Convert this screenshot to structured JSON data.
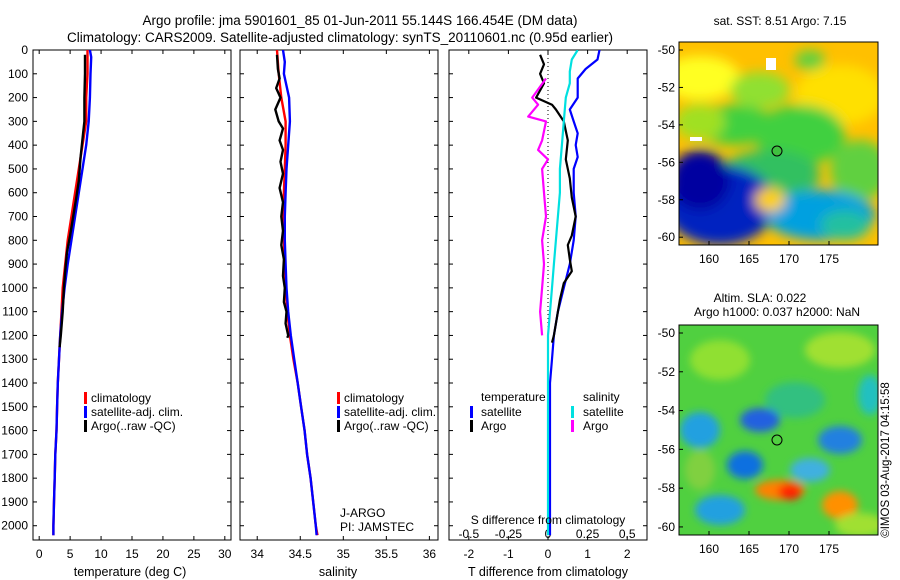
{
  "header": {
    "line1": "Argo profile: jma 5901601_85 01-Jun-2011 55.144S 166.454E (DM data)",
    "line2": "Climatology: CARS2009. Satellite-adjusted climatology: synTS_20110601.nc (0.95d earlier)"
  },
  "colors": {
    "climatology": "#ff0000",
    "satellite": "#0000ff",
    "argo": "#000000",
    "sat_S": "#00e0e0",
    "argo_S": "#ff00ff"
  },
  "chart_data": [
    {
      "type": "line",
      "panel": "temperature",
      "xlabel": "temperature (deg C)",
      "ylabel": "",
      "xlim": [
        -1,
        31
      ],
      "ylim": [
        2060,
        0
      ],
      "xticks": [
        0,
        5,
        10,
        15,
        20,
        25,
        30
      ],
      "yticks": [
        0,
        100,
        200,
        300,
        400,
        500,
        600,
        700,
        800,
        900,
        1000,
        1100,
        1200,
        1300,
        1400,
        1500,
        1600,
        1700,
        1800,
        1900,
        2000
      ],
      "legend": [
        "climatology",
        "satellite-adj. clim.",
        "Argo(..raw -QC)"
      ],
      "legend_position": "lower-center",
      "series": [
        {
          "name": "climatology",
          "color": "#ff0000",
          "points": [
            [
              7.8,
              0
            ],
            [
              7.8,
              100
            ],
            [
              7.6,
              200
            ],
            [
              7.6,
              300
            ],
            [
              7.0,
              400
            ],
            [
              6.4,
              500
            ],
            [
              5.8,
              600
            ],
            [
              5.2,
              700
            ],
            [
              4.6,
              800
            ],
            [
              4.2,
              900
            ],
            [
              3.8,
              1000
            ],
            [
              3.6,
              1100
            ],
            [
              3.4,
              1200
            ],
            [
              3.2,
              1300
            ],
            [
              3.0,
              1400
            ],
            [
              2.9,
              1500
            ],
            [
              2.8,
              1600
            ],
            [
              2.6,
              1700
            ],
            [
              2.5,
              1800
            ],
            [
              2.4,
              1900
            ],
            [
              2.3,
              2000
            ],
            [
              2.3,
              2040
            ]
          ]
        },
        {
          "name": "satellite-adj. clim.",
          "color": "#0000ff",
          "points": [
            [
              8.2,
              0
            ],
            [
              8.4,
              30
            ],
            [
              8.3,
              100
            ],
            [
              8.2,
              200
            ],
            [
              8.0,
              300
            ],
            [
              7.6,
              400
            ],
            [
              7.0,
              500
            ],
            [
              6.4,
              600
            ],
            [
              5.8,
              700
            ],
            [
              5.2,
              800
            ],
            [
              4.6,
              900
            ],
            [
              4.1,
              1000
            ],
            [
              3.7,
              1100
            ],
            [
              3.4,
              1200
            ],
            [
              3.2,
              1300
            ],
            [
              3.0,
              1400
            ],
            [
              2.9,
              1500
            ],
            [
              2.8,
              1600
            ],
            [
              2.6,
              1700
            ],
            [
              2.5,
              1800
            ],
            [
              2.4,
              1900
            ],
            [
              2.3,
              2000
            ],
            [
              2.3,
              2040
            ]
          ]
        },
        {
          "name": "Argo(..raw -QC)",
          "color": "#000000",
          "points": [
            [
              7.4,
              20
            ],
            [
              7.4,
              100
            ],
            [
              7.3,
              200
            ],
            [
              7.3,
              300
            ],
            [
              7.1,
              350
            ],
            [
              6.7,
              450
            ],
            [
              6.4,
              550
            ],
            [
              6.0,
              620
            ],
            [
              5.5,
              700
            ],
            [
              5.0,
              780
            ],
            [
              4.5,
              850
            ],
            [
              4.2,
              930
            ],
            [
              4.0,
              1000
            ],
            [
              3.8,
              1100
            ],
            [
              3.5,
              1200
            ],
            [
              3.3,
              1250
            ]
          ]
        }
      ]
    },
    {
      "type": "line",
      "panel": "salinity",
      "xlabel": "salinity",
      "xlim": [
        33.8,
        36.1
      ],
      "ylim": [
        2060,
        0
      ],
      "xticks": [
        34,
        34.5,
        35,
        35.5,
        36
      ],
      "legend": [
        "climatology",
        "satellite-adj. clim.",
        "Argo(..raw -QC)"
      ],
      "legend_position": "lower-center",
      "annotation": [
        "J-ARGO",
        "PI: JAMSTEC"
      ],
      "series": [
        {
          "name": "climatology",
          "color": "#ff0000",
          "points": [
            [
              34.23,
              0
            ],
            [
              34.25,
              100
            ],
            [
              34.28,
              200
            ],
            [
              34.33,
              300
            ],
            [
              34.33,
              400
            ],
            [
              34.32,
              500
            ],
            [
              34.31,
              600
            ],
            [
              34.3,
              700
            ],
            [
              34.31,
              800
            ],
            [
              34.32,
              900
            ],
            [
              34.33,
              1000
            ],
            [
              34.35,
              1100
            ],
            [
              34.38,
              1200
            ],
            [
              34.42,
              1300
            ],
            [
              34.47,
              1400
            ],
            [
              34.51,
              1500
            ],
            [
              34.55,
              1600
            ],
            [
              34.58,
              1700
            ],
            [
              34.62,
              1800
            ],
            [
              34.65,
              1900
            ],
            [
              34.68,
              2000
            ],
            [
              34.7,
              2040
            ]
          ]
        },
        {
          "name": "satellite-adj. clim.",
          "color": "#0000ff",
          "points": [
            [
              34.3,
              0
            ],
            [
              34.32,
              50
            ],
            [
              34.31,
              100
            ],
            [
              34.34,
              150
            ],
            [
              34.37,
              200
            ],
            [
              34.38,
              300
            ],
            [
              34.36,
              400
            ],
            [
              34.34,
              500
            ],
            [
              34.33,
              600
            ],
            [
              34.32,
              700
            ],
            [
              34.32,
              800
            ],
            [
              34.33,
              900
            ],
            [
              34.34,
              1000
            ],
            [
              34.36,
              1100
            ],
            [
              34.39,
              1200
            ],
            [
              34.43,
              1300
            ],
            [
              34.47,
              1400
            ],
            [
              34.51,
              1500
            ],
            [
              34.55,
              1600
            ],
            [
              34.58,
              1700
            ],
            [
              34.62,
              1800
            ],
            [
              34.65,
              1900
            ],
            [
              34.68,
              2000
            ],
            [
              34.69,
              2040
            ]
          ]
        },
        {
          "name": "Argo(..raw -QC)",
          "color": "#000000",
          "points": [
            [
              34.23,
              20
            ],
            [
              34.24,
              80
            ],
            [
              34.26,
              120
            ],
            [
              34.22,
              160
            ],
            [
              34.27,
              200
            ],
            [
              34.21,
              250
            ],
            [
              34.25,
              300
            ],
            [
              34.3,
              330
            ],
            [
              34.26,
              380
            ],
            [
              34.3,
              420
            ],
            [
              34.27,
              470
            ],
            [
              34.3,
              520
            ],
            [
              34.26,
              580
            ],
            [
              34.3,
              640
            ],
            [
              34.28,
              700
            ],
            [
              34.3,
              760
            ],
            [
              34.28,
              820
            ],
            [
              34.31,
              880
            ],
            [
              34.3,
              950
            ],
            [
              34.32,
              1000
            ],
            [
              34.31,
              1060
            ],
            [
              34.34,
              1100
            ],
            [
              34.33,
              1150
            ],
            [
              34.36,
              1200
            ],
            [
              34.35,
              1210
            ]
          ]
        }
      ]
    },
    {
      "type": "line",
      "panel": "differences",
      "xlabel": "T difference from climatology",
      "x2label": "S difference from climatology",
      "xlim": [
        -2.5,
        2.5
      ],
      "ylim": [
        2060,
        0
      ],
      "xticks": [
        -2,
        -1,
        0,
        1,
        2
      ],
      "x2ticks": [
        "-0.5",
        "-0.25",
        "0",
        "0.25",
        "0.5"
      ],
      "legend": {
        "temperature": [
          "satellite",
          "Argo"
        ],
        "salinity": [
          "satellite",
          "Argo"
        ]
      },
      "series": [
        {
          "name": "satellite",
          "group": "temperature",
          "color": "#0000ff",
          "points": [
            [
              1.3,
              0
            ],
            [
              1.25,
              40
            ],
            [
              0.95,
              80
            ],
            [
              0.75,
              120
            ],
            [
              0.75,
              200
            ],
            [
              0.55,
              250
            ],
            [
              0.65,
              300
            ],
            [
              0.75,
              350
            ],
            [
              0.7,
              400
            ],
            [
              0.75,
              450
            ],
            [
              0.65,
              500
            ],
            [
              0.65,
              600
            ],
            [
              0.7,
              700
            ],
            [
              0.65,
              800
            ],
            [
              0.55,
              900
            ],
            [
              0.4,
              1000
            ],
            [
              0.25,
              1100
            ],
            [
              0.15,
              1200
            ],
            [
              0.1,
              1300
            ],
            [
              0.05,
              1400
            ],
            [
              0.05,
              1500
            ],
            [
              0.05,
              1600
            ],
            [
              0.05,
              1700
            ],
            [
              0.05,
              1800
            ],
            [
              0.05,
              1900
            ],
            [
              0.05,
              2000
            ],
            [
              0.05,
              2040
            ]
          ]
        },
        {
          "name": "Argo",
          "group": "temperature",
          "color": "#000000",
          "points": [
            [
              -0.2,
              20
            ],
            [
              -0.1,
              60
            ],
            [
              -0.2,
              100
            ],
            [
              -0.1,
              140
            ],
            [
              -0.3,
              200
            ],
            [
              0.1,
              230
            ],
            [
              0.2,
              250
            ],
            [
              0.4,
              300
            ],
            [
              0.5,
              380
            ],
            [
              0.45,
              460
            ],
            [
              0.55,
              540
            ],
            [
              0.6,
              620
            ],
            [
              0.7,
              700
            ],
            [
              0.6,
              780
            ],
            [
              0.5,
              820
            ],
            [
              0.55,
              880
            ],
            [
              0.6,
              930
            ],
            [
              0.4,
              980
            ],
            [
              0.3,
              1050
            ],
            [
              0.25,
              1100
            ],
            [
              0.2,
              1150
            ],
            [
              0.15,
              1200
            ],
            [
              0.1,
              1230
            ]
          ]
        },
        {
          "name": "satellite",
          "group": "salinity",
          "color": "#00e0e0",
          "points": [
            [
              0.75,
              0
            ],
            [
              0.6,
              40
            ],
            [
              0.55,
              90
            ],
            [
              0.55,
              140
            ],
            [
              0.45,
              200
            ],
            [
              0.4,
              300
            ],
            [
              0.35,
              400
            ],
            [
              0.3,
              500
            ],
            [
              0.3,
              600
            ],
            [
              0.25,
              700
            ],
            [
              0.2,
              800
            ],
            [
              0.15,
              900
            ],
            [
              0.1,
              1000
            ],
            [
              0.05,
              1100
            ],
            [
              0.0,
              1200
            ],
            [
              0.0,
              1400
            ],
            [
              0.0,
              1600
            ],
            [
              0.0,
              1800
            ],
            [
              0.0,
              2000
            ],
            [
              0.0,
              2040
            ]
          ]
        },
        {
          "name": "Argo",
          "group": "salinity",
          "color": "#ff00ff",
          "points": [
            [
              -0.05,
              120
            ],
            [
              -0.4,
              200
            ],
            [
              -0.25,
              230
            ],
            [
              -0.5,
              280
            ],
            [
              -0.05,
              300
            ],
            [
              -0.15,
              380
            ],
            [
              -0.25,
              420
            ],
            [
              0.0,
              460
            ],
            [
              -0.15,
              500
            ],
            [
              -0.1,
              600
            ],
            [
              -0.05,
              700
            ],
            [
              -0.15,
              800
            ],
            [
              -0.1,
              900
            ],
            [
              -0.15,
              1000
            ],
            [
              -0.2,
              1100
            ],
            [
              -0.15,
              1200
            ]
          ]
        }
      ]
    }
  ],
  "maps": {
    "sst": {
      "title": "sat. SST: 8.51 Argo: 7.15",
      "xticks": [
        "160",
        "165",
        "170",
        "175"
      ],
      "yticks": [
        "-50",
        "-52",
        "-54",
        "-56",
        "-58",
        "-60"
      ]
    },
    "sla": {
      "title1": "Altim. SLA: 0.022",
      "title2": "Argo h1000: 0.037 h2000: NaN",
      "xticks": [
        "160",
        "165",
        "170",
        "175"
      ],
      "yticks": [
        "-50",
        "-52",
        "-54",
        "-56",
        "-58",
        "-60"
      ]
    }
  },
  "credit": "©IMOS 03-Aug-2017 04:15:58"
}
